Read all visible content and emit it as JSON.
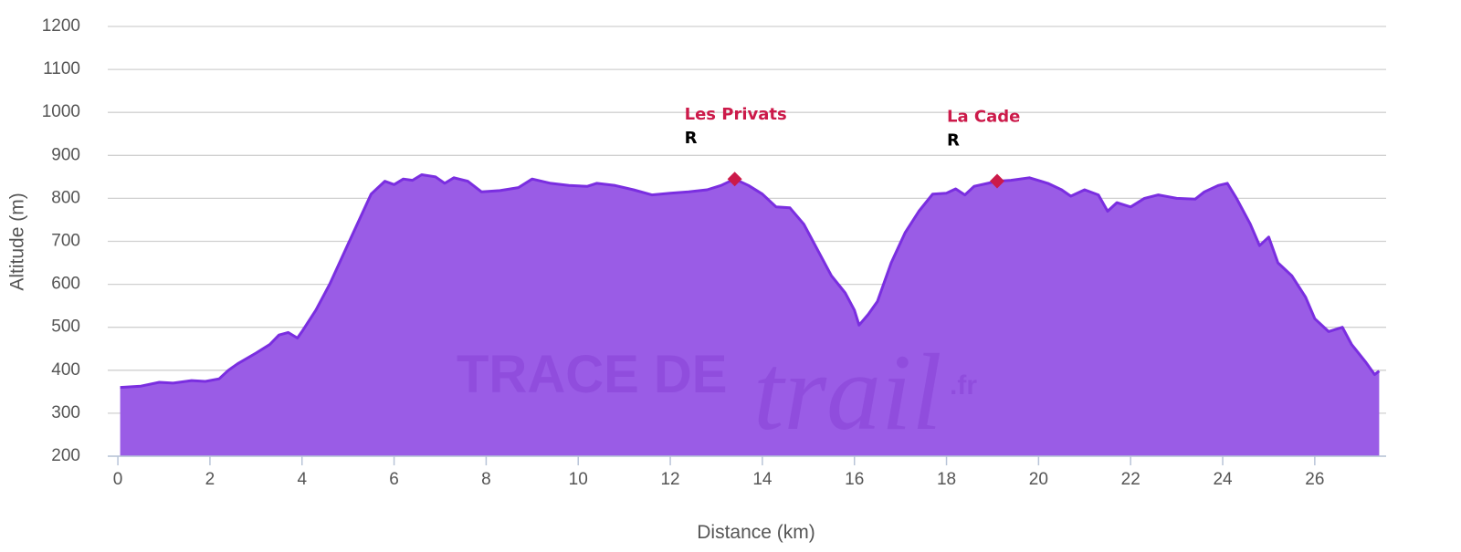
{
  "chart_data": {
    "type": "area",
    "x_label": "Distance (km)",
    "y_label": "Altitude (m)",
    "xlim": [
      -0.22,
      27.55
    ],
    "ylim": [
      200,
      1200
    ],
    "xticks": [
      0,
      2,
      4,
      6,
      8,
      10,
      12,
      14,
      16,
      18,
      20,
      22,
      24,
      26
    ],
    "yticks": [
      200,
      300,
      400,
      500,
      600,
      700,
      800,
      900,
      1000,
      1100,
      1200
    ],
    "grid": true,
    "x": [
      0.05,
      0.5,
      0.9,
      1.2,
      1.6,
      1.9,
      2.2,
      2.4,
      2.6,
      3.0,
      3.3,
      3.5,
      3.7,
      3.9,
      4.0,
      4.3,
      4.6,
      4.9,
      5.2,
      5.5,
      5.8,
      6.0,
      6.2,
      6.4,
      6.6,
      6.9,
      7.1,
      7.3,
      7.6,
      7.9,
      8.3,
      8.7,
      9.0,
      9.4,
      9.8,
      10.2,
      10.4,
      10.8,
      11.2,
      11.6,
      12.0,
      12.4,
      12.8,
      13.1,
      13.4,
      13.7,
      14.0,
      14.3,
      14.6,
      14.9,
      15.2,
      15.5,
      15.8,
      16.0,
      16.1,
      16.3,
      16.5,
      16.8,
      17.1,
      17.4,
      17.7,
      18.0,
      18.2,
      18.4,
      18.6,
      18.9,
      19.1,
      19.4,
      19.8,
      20.2,
      20.5,
      20.7,
      21.0,
      21.3,
      21.5,
      21.7,
      22.0,
      22.3,
      22.6,
      23.0,
      23.4,
      23.6,
      23.9,
      24.1,
      24.3,
      24.6,
      24.8,
      25.0,
      25.2,
      25.5,
      25.8,
      26.0,
      26.3,
      26.6,
      26.8,
      27.1,
      27.3,
      27.4
    ],
    "series": [
      {
        "color": "#9a5ce6",
        "line_color": "#7a2ee0",
        "values": [
          360,
          363,
          372,
          370,
          376,
          374,
          380,
          400,
          415,
          440,
          460,
          482,
          488,
          475,
          490,
          540,
          600,
          670,
          740,
          810,
          840,
          832,
          845,
          842,
          855,
          850,
          835,
          848,
          840,
          815,
          818,
          825,
          845,
          835,
          830,
          828,
          835,
          830,
          820,
          808,
          812,
          815,
          820,
          830,
          845,
          830,
          810,
          780,
          778,
          740,
          680,
          620,
          580,
          540,
          505,
          530,
          560,
          650,
          720,
          770,
          810,
          812,
          822,
          808,
          828,
          835,
          840,
          842,
          848,
          835,
          820,
          805,
          820,
          808,
          770,
          790,
          780,
          800,
          808,
          800,
          798,
          815,
          830,
          835,
          800,
          740,
          690,
          710,
          650,
          620,
          570,
          520,
          490,
          500,
          460,
          420,
          390,
          398
        ]
      }
    ],
    "annotations": [
      {
        "x": 13.4,
        "y": 845,
        "label": "Les Privats",
        "sublabel": "R",
        "color": "#cc1a4a"
      },
      {
        "x": 19.1,
        "y": 840,
        "label": "La Cade",
        "sublabel": "R",
        "color": "#cc1a4a"
      }
    ],
    "watermark": [
      "TRACE DE",
      "trail",
      ".fr"
    ]
  }
}
